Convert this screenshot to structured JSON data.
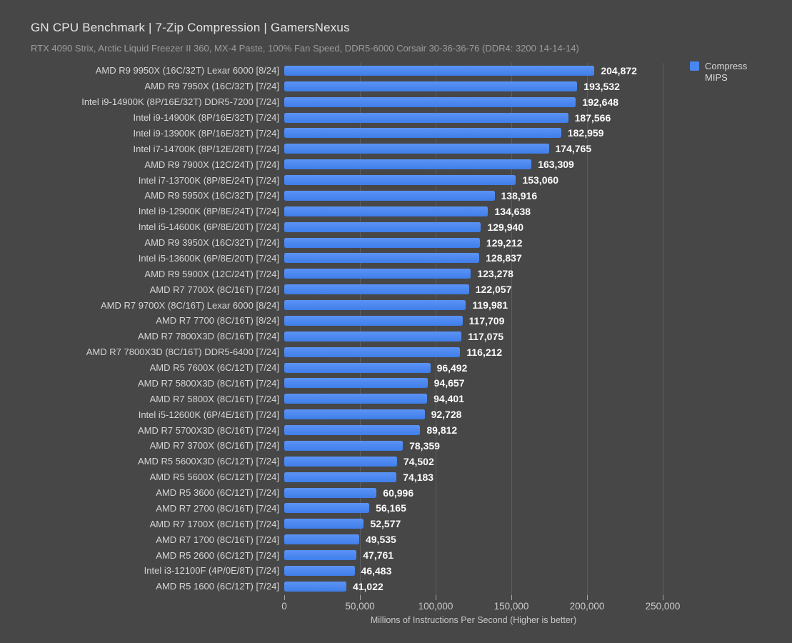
{
  "page": {
    "background": "#474747"
  },
  "chart_data": {
    "type": "bar",
    "orientation": "horizontal",
    "title": "GN CPU Benchmark | 7-Zip Compression | GamersNexus",
    "subtitle": "RTX 4090 Strix, Arctic Liquid Freezer II 360, MX-4 Paste, 100% Fan Speed, DDR5-6000 Corsair 30-36-36-76 (DDR4: 3200 14-14-14)",
    "xlabel": "Millions of Instructions Per Second (Higher is better)",
    "xlim": [
      0,
      250000
    ],
    "grid": true,
    "bar_color": "#4886F2",
    "legend": {
      "position": "top-right",
      "entries": [
        {
          "label_line1": "Compress",
          "label_line2": "MIPS",
          "color": "#4886F2"
        }
      ]
    },
    "xticks": {
      "values": [
        0,
        50000,
        100000,
        150000,
        200000,
        250000
      ],
      "labels": [
        "0",
        "50,000",
        "100,000",
        "150,000",
        "200,000",
        "250,000"
      ]
    },
    "categories": [
      "AMD R9 9950X (16C/32T) Lexar 6000 [8/24]",
      "AMD R9 7950X (16C/32T) [7/24]",
      "Intel i9-14900K (8P/16E/32T) DDR5-7200 [7/24]",
      "Intel i9-14900K (8P/16E/32T) [7/24]",
      "Intel i9-13900K (8P/16E/32T) [7/24]",
      "Intel i7-14700K (8P/12E/28T) [7/24]",
      "AMD R9 7900X (12C/24T) [7/24]",
      "Intel i7-13700K (8P/8E/24T) [7/24]",
      "AMD R9 5950X (16C/32T) [7/24]",
      "Intel i9-12900K (8P/8E/24T) [7/24]",
      "Intel i5-14600K (6P/8E/20T) [7/24]",
      "AMD R9 3950X (16C/32T) [7/24]",
      "Intel i5-13600K (6P/8E/20T) [7/24]",
      "AMD R9 5900X (12C/24T) [7/24]",
      "AMD R7 7700X (8C/16T) [7/24]",
      "AMD R7 9700X (8C/16T) Lexar 6000 [8/24]",
      "AMD R7 7700 (8C/16T) [8/24]",
      "AMD R7 7800X3D (8C/16T) [7/24]",
      "AMD R7 7800X3D (8C/16T) DDR5-6400 [7/24]",
      "AMD R5 7600X (6C/12T) [7/24]",
      "AMD R7 5800X3D (8C/16T) [7/24]",
      "AMD R7 5800X (8C/16T) [7/24]",
      "Intel i5-12600K (6P/4E/16T) [7/24]",
      "AMD R7 5700X3D (8C/16T) [7/24]",
      "AMD R7 3700X (8C/16T) [7/24]",
      "AMD R5 5600X3D (6C/12T) [7/24]",
      "AMD R5 5600X (6C/12T) [7/24]",
      "AMD R5 3600 (6C/12T) [7/24]",
      "AMD R7 2700 (8C/16T) [7/24]",
      "AMD R7 1700X (8C/16T) [7/24]",
      "AMD R7 1700 (8C/16T) [7/24]",
      "AMD R5 2600 (6C/12T) [7/24]",
      "Intel i3-12100F (4P/0E/8T) [7/24]",
      "AMD R5 1600 (6C/12T) [7/24]"
    ],
    "values": [
      204872,
      193532,
      192648,
      187566,
      182959,
      174765,
      163309,
      153060,
      138916,
      134638,
      129940,
      129212,
      128837,
      123278,
      122057,
      119981,
      117709,
      117075,
      116212,
      96492,
      94657,
      94401,
      92728,
      89812,
      78359,
      74502,
      74183,
      60996,
      56165,
      52577,
      49535,
      47761,
      46483,
      41022
    ],
    "value_labels": [
      "204,872",
      "193,532",
      "192,648",
      "187,566",
      "182,959",
      "174,765",
      "163,309",
      "153,060",
      "138,916",
      "134,638",
      "129,940",
      "129,212",
      "128,837",
      "123,278",
      "122,057",
      "119,981",
      "117,709",
      "117,075",
      "116,212",
      "96,492",
      "94,657",
      "94,401",
      "92,728",
      "89,812",
      "78,359",
      "74,502",
      "74,183",
      "60,996",
      "56,165",
      "52,577",
      "49,535",
      "47,761",
      "46,483",
      "41,022"
    ]
  }
}
